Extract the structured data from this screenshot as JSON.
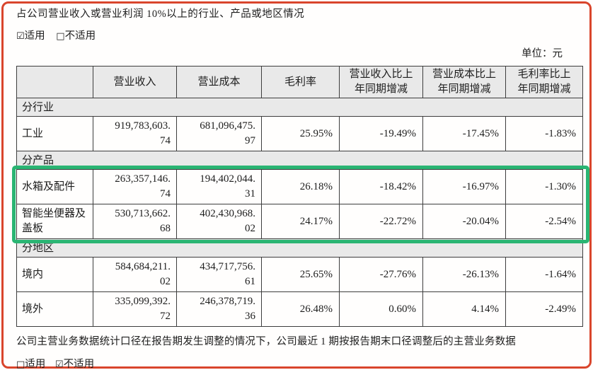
{
  "header": {
    "title": "占公司营业收入或营业利润 10%以上的行业、产品或地区情况",
    "applicability": {
      "applicable": {
        "symbol": "☑",
        "label": "适用"
      },
      "not_applicable": {
        "symbol": "□",
        "label": "不适用"
      }
    },
    "unit_label": "单位：元"
  },
  "table": {
    "columns": [
      "",
      "营业收入",
      "营业成本",
      "毛利率",
      "营业收入比上年同期增减",
      "营业成本比上年同期增减",
      "毛利率比上年同期增减"
    ],
    "rows": [
      {
        "type": "section",
        "label": "分行业"
      },
      {
        "type": "data",
        "label": "工业",
        "cells": [
          "919,783,603.74",
          "681,096,475.97",
          "25.95%",
          "-19.49%",
          "-17.45%",
          "-1.83%"
        ],
        "highlighted": false
      },
      {
        "type": "section",
        "label": "分产品"
      },
      {
        "type": "data",
        "label": "水箱及配件",
        "cells": [
          "263,357,146.74",
          "194,402,044.31",
          "26.18%",
          "-18.42%",
          "-16.97%",
          "-1.30%"
        ],
        "highlighted": true
      },
      {
        "type": "data",
        "label": "智能坐便器及盖板",
        "cells": [
          "530,713,662.68",
          "402,430,968.02",
          "24.17%",
          "-22.72%",
          "-20.04%",
          "-2.54%"
        ],
        "highlighted": true
      },
      {
        "type": "section",
        "label": "分地区"
      },
      {
        "type": "data",
        "label": "境内",
        "cells": [
          "584,684,211.02",
          "434,717,756.61",
          "25.65%",
          "-27.76%",
          "-26.13%",
          "-1.64%"
        ],
        "highlighted": false
      },
      {
        "type": "data",
        "label": "境外",
        "cells": [
          "335,099,392.72",
          "246,378,719.36",
          "26.48%",
          "0.60%",
          "4.14%",
          "-2.49%"
        ],
        "highlighted": false
      }
    ]
  },
  "footer": {
    "note": "公司主营业务数据统计口径在报告期发生调整的情况下，公司最近 1 期按报告期末口径调整后的主营业务数据",
    "applicability": {
      "applicable": {
        "symbol": "□",
        "label": "适用"
      },
      "not_applicable": {
        "symbol": "☑",
        "label": "不适用"
      }
    }
  },
  "colors": {
    "frame_border": "#d9452c",
    "highlight_border": "#2ab573",
    "table_header_bg": "#e9e9e9",
    "section_row_bg": "#e9e9e9",
    "table_line": "#3d3d3d",
    "text": "#1d1d1d"
  }
}
